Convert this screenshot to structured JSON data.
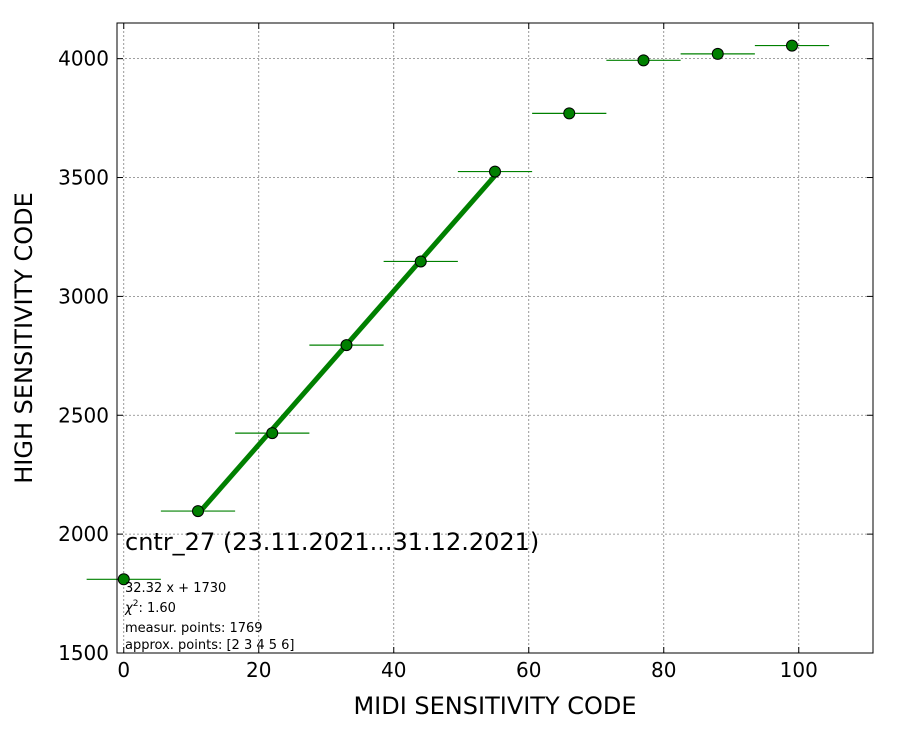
{
  "chart_data": {
    "type": "scatter",
    "title": "",
    "xlabel": "MIDI SENSITIVITY CODE",
    "ylabel": "HIGH SENSITIVITY CODE",
    "xlim": [
      -1,
      111
    ],
    "ylim": [
      1500,
      4150
    ],
    "xticks": [
      0,
      20,
      40,
      60,
      80,
      100
    ],
    "yticks": [
      1500,
      2000,
      2500,
      3000,
      3500,
      4000
    ],
    "grid": true,
    "colors": {
      "marker": "#008000",
      "marker_edge": "#000000",
      "fit_line": "#008000",
      "grid": "#808080"
    },
    "series": [
      {
        "kind": "points_with_xerr",
        "x": [
          0,
          11,
          22,
          33,
          44,
          55,
          66,
          77,
          88,
          99
        ],
        "y": [
          1810,
          2097,
          2425,
          2795,
          3147,
          3525,
          3770,
          3993,
          4020,
          4055
        ],
        "xerr": 5.5
      },
      {
        "kind": "fit_line",
        "x": [
          11,
          55
        ],
        "y": [
          2085,
          3508
        ]
      }
    ],
    "annotations": {
      "title_text": "cntr_27 (23.11.2021...31.12.2021)",
      "fit_equation": "32.32 x + 1730",
      "chi2_prefix": "χ",
      "chi2_sup": "2",
      "chi2_suffix": ": 1.60",
      "measur_points": "measur. points: 1769",
      "approx_points": "approx. points: [2 3 4 5 6]"
    }
  }
}
